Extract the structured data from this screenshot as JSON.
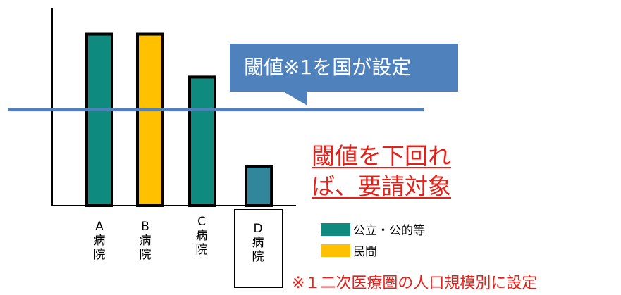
{
  "chart_data": {
    "type": "bar",
    "categories": [
      "A\n病\n院",
      "B\n病\n院",
      "C\n病\n院",
      "D\n病\n院"
    ],
    "values": [
      100,
      100,
      75,
      23
    ],
    "series_of_bar": [
      "公立・公的等",
      "民間",
      "公立・公的等",
      "公立・公的等"
    ],
    "threshold": 56,
    "ylim": [
      0,
      115
    ],
    "legend": [
      {
        "label": "公立・公的等",
        "color": "#0e8a7e"
      },
      {
        "label": "民間",
        "color": "#ffc000"
      }
    ],
    "bar_colors": [
      "#0e8a7e",
      "#ffc000",
      "#0e8a7e",
      "#31869b"
    ],
    "threshold_color": "#4f81bd",
    "grid": false,
    "legend_position": "right"
  },
  "annotations": {
    "callout": "閾値※1を国が設定",
    "red_note": "閾値を下回れば、要請対象",
    "footnote": "※１二次医療圏の人口規模別に設定"
  },
  "colors": {
    "accent_red": "#e32119",
    "callout_bg": "#4f81bd"
  }
}
